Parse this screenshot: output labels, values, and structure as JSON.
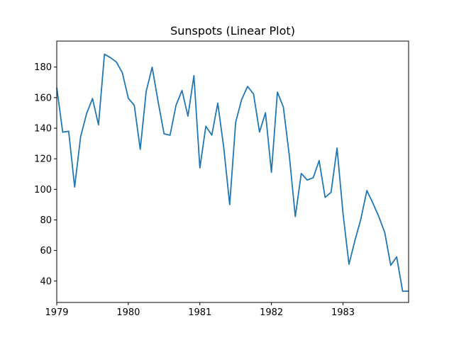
{
  "chart_data": {
    "type": "line",
    "title": "Sunspots (Linear Plot)",
    "xlabel": "",
    "ylabel": "",
    "xlim": [
      "1979-01",
      "1983-12"
    ],
    "ylim": [
      26,
      197
    ],
    "x_ticks": [
      "1979",
      "1980",
      "1981",
      "1982",
      "1983"
    ],
    "y_ticks": [
      40,
      60,
      80,
      100,
      120,
      140,
      160,
      180
    ],
    "grid": false,
    "series": [
      {
        "color": "#1f77b4",
        "x": [
          "1979-01",
          "1979-02",
          "1979-03",
          "1979-04",
          "1979-05",
          "1979-06",
          "1979-07",
          "1979-08",
          "1979-09",
          "1979-10",
          "1979-11",
          "1979-12",
          "1980-01",
          "1980-02",
          "1980-03",
          "1980-04",
          "1980-05",
          "1980-06",
          "1980-07",
          "1980-08",
          "1980-09",
          "1980-10",
          "1980-11",
          "1980-12",
          "1981-01",
          "1981-02",
          "1981-03",
          "1981-04",
          "1981-05",
          "1981-06",
          "1981-07",
          "1981-08",
          "1981-09",
          "1981-10",
          "1981-11",
          "1981-12",
          "1982-01",
          "1982-02",
          "1982-03",
          "1982-04",
          "1982-05",
          "1982-06",
          "1982-07",
          "1982-08",
          "1982-09",
          "1982-10",
          "1982-11",
          "1982-12",
          "1983-01",
          "1983-02",
          "1983-03",
          "1983-04",
          "1983-05",
          "1983-06",
          "1983-07",
          "1983-08",
          "1983-09",
          "1983-10",
          "1983-11",
          "1983-12"
        ],
        "values": [
          166.6,
          137.4,
          138.0,
          101.5,
          134.4,
          149.5,
          159.4,
          142.2,
          188.4,
          186.2,
          183.3,
          176.3,
          159.6,
          155.0,
          126.2,
          164.1,
          179.9,
          157.3,
          136.3,
          135.4,
          155.0,
          164.7,
          147.9,
          174.4,
          114.0,
          141.3,
          135.5,
          156.4,
          127.5,
          90.0,
          143.8,
          158.7,
          167.3,
          162.4,
          137.5,
          150.1,
          111.2,
          163.6,
          153.8,
          122.0,
          82.2,
          110.4,
          106.1,
          107.6,
          118.8,
          94.7,
          98.1,
          127.0,
          84.3,
          51.0,
          66.5,
          80.7,
          99.2,
          91.1,
          82.2,
          71.8,
          50.3,
          55.8,
          33.3,
          33.4
        ]
      }
    ]
  }
}
